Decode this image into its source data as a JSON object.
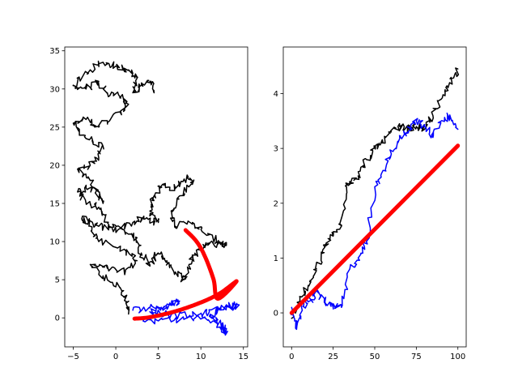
{
  "chart_data": [
    {
      "type": "line",
      "title": "",
      "xlabel": "",
      "ylabel": "",
      "xlim": [
        -6,
        15.5
      ],
      "ylim": [
        -3.8,
        35.5
      ],
      "xticks": [
        -5,
        0,
        5,
        10,
        15
      ],
      "yticks": [
        0,
        5,
        10,
        15,
        20,
        25,
        30,
        35
      ],
      "xtick_labels": [
        "−5",
        "0",
        "5",
        "10",
        "15"
      ],
      "ytick_labels": [
        "0",
        "5",
        "10",
        "15",
        "20",
        "25",
        "30",
        "35"
      ],
      "grid": false,
      "series": [
        {
          "color": "#000000",
          "width": 1.5,
          "style": "random-walk",
          "points": [
            [
              1.5,
              0.5
            ],
            [
              1.3,
              2.0
            ],
            [
              0.5,
              4.0
            ],
            [
              -1.5,
              5.5
            ],
            [
              -3.0,
              7.0
            ],
            [
              -1.0,
              6.5
            ],
            [
              1.0,
              6.0
            ],
            [
              2.5,
              7.5
            ],
            [
              1.0,
              9.0
            ],
            [
              -2.0,
              10.0
            ],
            [
              -3.0,
              12.0
            ],
            [
              -4.0,
              13.0
            ],
            [
              -2.0,
              12.0
            ],
            [
              0.0,
              11.5
            ],
            [
              2.0,
              12.5
            ],
            [
              3.5,
              13.0
            ],
            [
              5.0,
              12.5
            ],
            [
              4.0,
              14.0
            ],
            [
              4.5,
              16.0
            ],
            [
              5.5,
              17.5
            ],
            [
              7.0,
              17.0
            ],
            [
              8.5,
              18.5
            ],
            [
              9.0,
              17.5
            ],
            [
              7.5,
              16.0
            ],
            [
              6.5,
              14.0
            ],
            [
              7.0,
              12.0
            ],
            [
              9.0,
              12.5
            ],
            [
              10.5,
              11.0
            ],
            [
              12.0,
              10.0
            ],
            [
              13.0,
              9.5
            ],
            [
              11.0,
              9.8
            ],
            [
              10.0,
              9.0
            ],
            [
              9.0,
              8.0
            ],
            [
              8.5,
              6.5
            ],
            [
              8.0,
              5.0
            ],
            [
              7.0,
              6.0
            ],
            [
              6.0,
              7.5
            ],
            [
              5.0,
              8.5
            ],
            [
              4.0,
              7.0
            ],
            [
              3.0,
              8.5
            ],
            [
              2.5,
              10.5
            ],
            [
              1.0,
              11.5
            ],
            [
              -1.0,
              12.5
            ],
            [
              -2.0,
              14.5
            ],
            [
              -3.0,
              15.0
            ],
            [
              -4.5,
              16.5
            ],
            [
              -3.5,
              17.0
            ],
            [
              -2.0,
              16.5
            ],
            [
              -1.5,
              15.0
            ],
            [
              -3.0,
              18.0
            ],
            [
              -4.5,
              19.5
            ],
            [
              -3.0,
              20.0
            ],
            [
              -2.0,
              21.0
            ],
            [
              -1.5,
              22.5
            ],
            [
              -3.5,
              23.5
            ],
            [
              -5.0,
              25.5
            ],
            [
              -3.5,
              26.0
            ],
            [
              -2.0,
              25.0
            ],
            [
              0.5,
              27.0
            ],
            [
              1.5,
              28.0
            ],
            [
              0.5,
              29.0
            ],
            [
              -1.0,
              29.5
            ],
            [
              -2.0,
              31.0
            ],
            [
              -3.5,
              30.0
            ],
            [
              -5.0,
              30.5
            ],
            [
              -3.0,
              32.5
            ],
            [
              -1.5,
              33.5
            ],
            [
              0.0,
              33.0
            ],
            [
              1.5,
              32.5
            ],
            [
              2.5,
              31.5
            ],
            [
              2.0,
              29.5
            ],
            [
              3.0,
              30.5
            ],
            [
              4.0,
              31.0
            ],
            [
              4.5,
              29.5
            ]
          ]
        },
        {
          "color": "#0000ff",
          "width": 1.5,
          "style": "random-walk",
          "points": [
            [
              2.0,
              1.0
            ],
            [
              4.0,
              1.3
            ],
            [
              6.0,
              1.7
            ],
            [
              7.5,
              2.2
            ],
            [
              6.0,
              1.5
            ],
            [
              4.0,
              0.8
            ],
            [
              6.5,
              0.4
            ],
            [
              9.5,
              0.3
            ],
            [
              11.0,
              0.8
            ],
            [
              13.0,
              1.5
            ],
            [
              14.5,
              1.7
            ],
            [
              12.0,
              1.0
            ],
            [
              11.0,
              0.2
            ],
            [
              12.5,
              -0.8
            ],
            [
              13.0,
              -2.0
            ],
            [
              12.0,
              -0.8
            ],
            [
              10.5,
              0.1
            ],
            [
              8.0,
              -0.2
            ],
            [
              5.0,
              -0.4
            ],
            [
              3.0,
              -0.2
            ]
          ]
        },
        {
          "color": "#ff0000",
          "width": 5,
          "style": "smooth",
          "points": [
            [
              2.2,
              -0.1
            ],
            [
              3.5,
              0.0
            ],
            [
              5.0,
              0.3
            ],
            [
              6.5,
              0.7
            ],
            [
              8.0,
              1.2
            ],
            [
              9.5,
              1.8
            ],
            [
              11.0,
              2.5
            ],
            [
              12.5,
              3.4
            ],
            [
              14.2,
              4.8
            ],
            [
              12.0,
              2.5
            ],
            [
              11.5,
              5.0
            ],
            [
              10.5,
              8.0
            ],
            [
              9.5,
              10.0
            ],
            [
              8.2,
              11.5
            ]
          ]
        }
      ]
    },
    {
      "type": "line",
      "title": "",
      "xlabel": "",
      "ylabel": "",
      "xlim": [
        -5,
        105
      ],
      "ylim": [
        -0.62,
        4.85
      ],
      "xticks": [
        0,
        25,
        50,
        75,
        100
      ],
      "yticks": [
        0,
        1,
        2,
        3,
        4
      ],
      "xtick_labels": [
        "0",
        "25",
        "50",
        "75",
        "100"
      ],
      "ytick_labels": [
        "0",
        "1",
        "2",
        "3",
        "4"
      ],
      "grid": false,
      "series": [
        {
          "color": "#000000",
          "width": 1.5,
          "style": "random-walk",
          "points": [
            [
              0,
              -0.1
            ],
            [
              5,
              0.2
            ],
            [
              10,
              0.5
            ],
            [
              15,
              0.8
            ],
            [
              20,
              1.2
            ],
            [
              25,
              1.4
            ],
            [
              30,
              1.6
            ],
            [
              33,
              2.3
            ],
            [
              35,
              2.4
            ],
            [
              40,
              2.5
            ],
            [
              45,
              2.8
            ],
            [
              50,
              3.0
            ],
            [
              55,
              3.1
            ],
            [
              60,
              3.3
            ],
            [
              65,
              3.4
            ],
            [
              70,
              3.35
            ],
            [
              75,
              3.4
            ],
            [
              80,
              3.35
            ],
            [
              85,
              3.6
            ],
            [
              90,
              3.9
            ],
            [
              95,
              4.2
            ],
            [
              100,
              4.45
            ]
          ]
        },
        {
          "color": "#0000ff",
          "width": 1.5,
          "style": "random-walk",
          "points": [
            [
              0,
              0.1
            ],
            [
              3,
              -0.3
            ],
            [
              6,
              0.1
            ],
            [
              10,
              0.2
            ],
            [
              15,
              0.4
            ],
            [
              20,
              0.2
            ],
            [
              25,
              0.1
            ],
            [
              30,
              0.1
            ],
            [
              35,
              0.8
            ],
            [
              40,
              1.0
            ],
            [
              45,
              1.3
            ],
            [
              50,
              2.3
            ],
            [
              55,
              2.6
            ],
            [
              60,
              2.9
            ],
            [
              65,
              3.2
            ],
            [
              70,
              3.3
            ],
            [
              75,
              3.5
            ],
            [
              80,
              3.4
            ],
            [
              85,
              3.2
            ],
            [
              90,
              3.5
            ],
            [
              95,
              3.6
            ],
            [
              100,
              3.35
            ]
          ]
        },
        {
          "color": "#ff0000",
          "width": 5,
          "style": "line",
          "points": [
            [
              0,
              0.0
            ],
            [
              100,
              3.05
            ]
          ]
        }
      ]
    }
  ]
}
